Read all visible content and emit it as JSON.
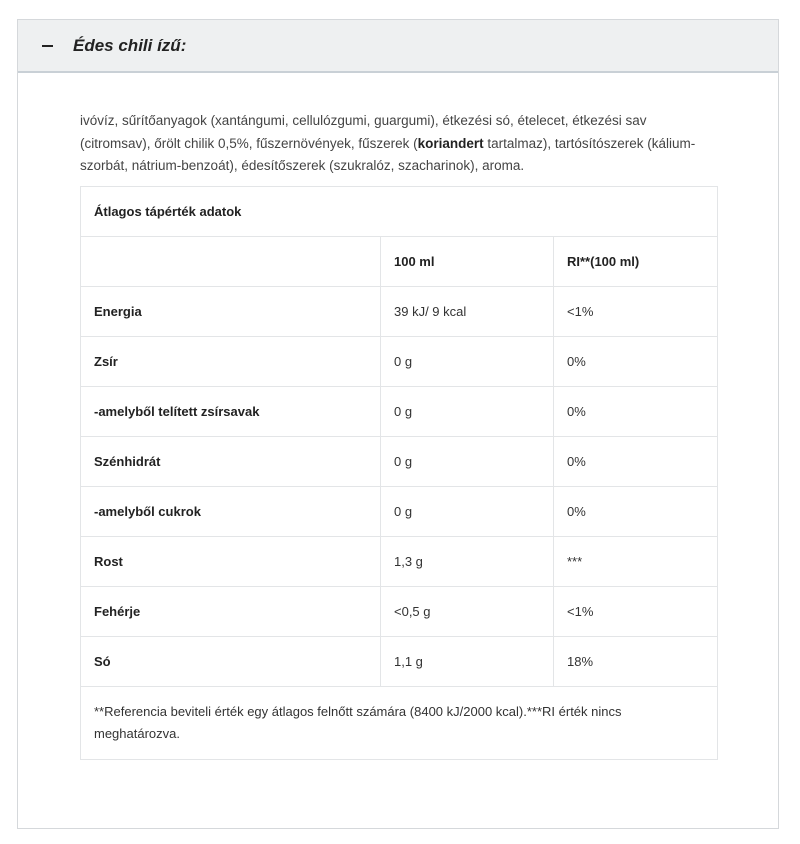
{
  "section": {
    "title": "Édes chili ízű:",
    "toggle_icon": "minus-icon"
  },
  "ingredients": {
    "before": "ivóvíz, sűrítőanyagok (xantángumi, cellulózgumi, guargumi), étkezési só, ételecet, étkezési sav (citromsav), őrölt chilik 0,5%, fűszernövények, fűszerek (",
    "bold": "koriandert",
    "after": " tartalmaz), tartósítószerek (kálium-szorbát, nátrium-benzoát), édesítőszerek (szukralóz, szacharinok), aroma."
  },
  "table": {
    "caption": "Átlagos tápérték adatok",
    "headers": [
      "",
      "100 ml",
      "RI**(100 ml)"
    ],
    "rows": [
      [
        "Energia",
        "39 kJ/ 9 kcal",
        "<1%"
      ],
      [
        "Zsír",
        "0 g",
        "0%"
      ],
      [
        "-amelyből telített zsírsavak",
        "0 g",
        "0%"
      ],
      [
        "Szénhidrát",
        "0 g",
        "0%"
      ],
      [
        "-amelyből cukrok",
        "0 g",
        "0%"
      ],
      [
        "Rost",
        "1,3 g",
        "***"
      ],
      [
        "Fehérje",
        "<0,5 g",
        "<1%"
      ],
      [
        "Só",
        "1,1 g",
        "18%"
      ]
    ],
    "footnote": "**Referencia beviteli érték egy átlagos felnőtt számára (8400 kJ/2000 kcal).***RI érték nincs meghatározva."
  }
}
